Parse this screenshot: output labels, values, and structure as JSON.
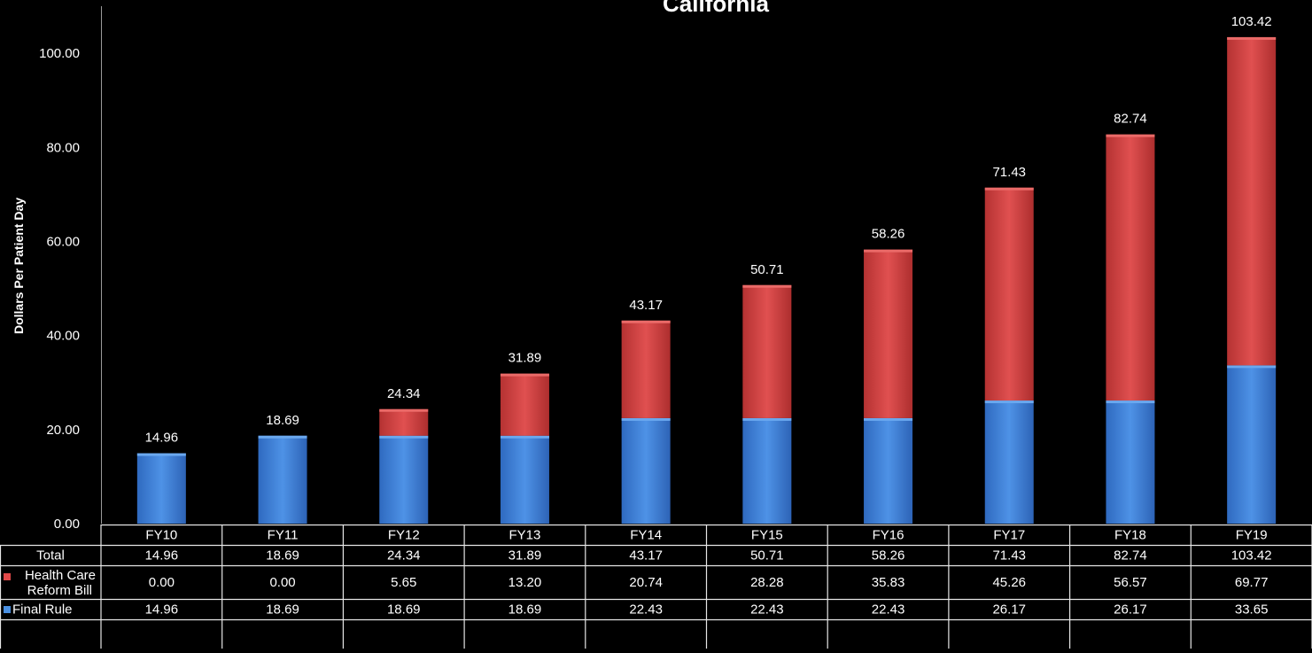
{
  "chart_data": {
    "type": "bar",
    "stacked": true,
    "title": "California",
    "ylabel": "Dollars Per Patient Day",
    "xlabel": "",
    "ylim": [
      0,
      110
    ],
    "ytick_step": 20,
    "ytick_labels": [
      "0.00",
      "20.00",
      "40.00",
      "60.00",
      "80.00",
      "100.00"
    ],
    "grid": false,
    "legend": "data-table",
    "categories": [
      "FY10",
      "FY11",
      "FY12",
      "FY13",
      "FY14",
      "FY15",
      "FY16",
      "FY17",
      "FY18",
      "FY19"
    ],
    "series": [
      {
        "name": "Final Rule",
        "color": "#3a7fd5",
        "values": [
          14.96,
          18.69,
          18.69,
          18.69,
          22.43,
          22.43,
          22.43,
          26.17,
          26.17,
          33.65
        ],
        "labels": [
          "14.96",
          "18.69",
          "18.69",
          "18.69",
          "22.43",
          "22.43",
          "22.43",
          "26.17",
          "26.17",
          "33.65"
        ]
      },
      {
        "name": "Health Care Reform Bill",
        "color": "#c83a38",
        "values": [
          0.0,
          0.0,
          5.65,
          13.2,
          20.74,
          28.28,
          35.83,
          45.26,
          56.57,
          69.77
        ],
        "labels": [
          "0.00",
          "0.00",
          "5.65",
          "13.20",
          "20.74",
          "28.28",
          "35.83",
          "45.26",
          "56.57",
          "69.77"
        ]
      }
    ],
    "totals": {
      "name": "Total",
      "values": [
        14.96,
        18.69,
        24.34,
        31.89,
        43.17,
        50.71,
        58.26,
        71.43,
        82.74,
        103.42
      ],
      "labels": [
        "14.96",
        "18.69",
        "24.34",
        "31.89",
        "43.17",
        "50.71",
        "58.26",
        "71.43",
        "82.74",
        "103.42"
      ]
    },
    "table_row_order": [
      "Total",
      "Health Care Reform Bill",
      "Final Rule"
    ]
  }
}
